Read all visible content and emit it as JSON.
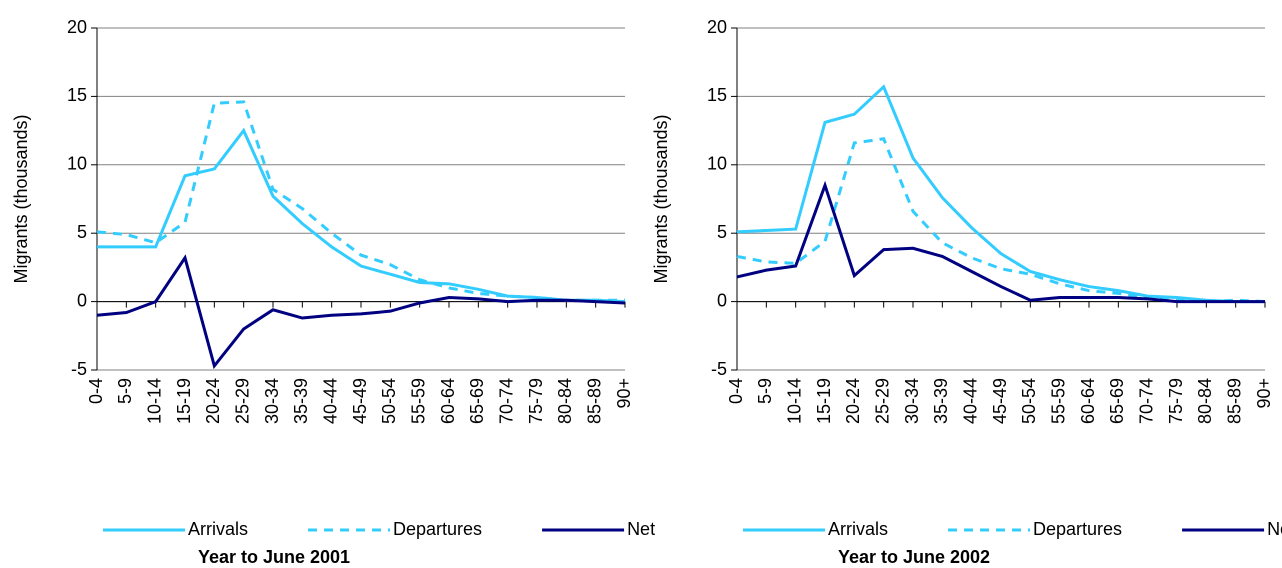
{
  "chart_data": [
    {
      "type": "line",
      "title": "Year to June 2001",
      "y_label": "Migrants (thousands)",
      "categories": [
        "0-4",
        "5-9",
        "10-14",
        "15-19",
        "20-24",
        "25-29",
        "30-34",
        "35-39",
        "40-44",
        "45-49",
        "50-54",
        "55-59",
        "60-64",
        "65-69",
        "70-74",
        "75-79",
        "80-84",
        "85-89",
        "90+"
      ],
      "series": [
        {
          "name": "Arrivals",
          "color": "#33ccff",
          "dashed": false,
          "values": [
            4.0,
            4.0,
            4.0,
            9.2,
            9.7,
            12.5,
            7.7,
            5.7,
            4.0,
            2.6,
            2.0,
            1.4,
            1.3,
            0.9,
            0.4,
            0.3,
            0.1,
            0.1,
            0.0
          ]
        },
        {
          "name": "Departures",
          "color": "#33ccff",
          "dashed": true,
          "values": [
            5.1,
            4.9,
            4.3,
            5.8,
            14.5,
            14.6,
            8.2,
            6.8,
            5.0,
            3.4,
            2.7,
            1.6,
            1.0,
            0.6,
            0.4,
            0.3,
            0.1,
            0.1,
            0.1
          ]
        },
        {
          "name": "Net",
          "color": "#000080",
          "dashed": false,
          "values": [
            -1.0,
            -0.8,
            0.0,
            3.2,
            -4.7,
            -2.0,
            -0.6,
            -1.2,
            -1.0,
            -0.9,
            -0.7,
            -0.1,
            0.3,
            0.2,
            0.0,
            0.1,
            0.1,
            0.0,
            -0.1
          ]
        }
      ],
      "ylim": [
        -5,
        20
      ],
      "yticks": [
        -5,
        0,
        5,
        10,
        15,
        20
      ],
      "grid": true,
      "legend": "bottom"
    },
    {
      "type": "line",
      "title": "Year to June 2002",
      "y_label": "Migrants (thousands)",
      "categories": [
        "0-4",
        "5-9",
        "10-14",
        "15-19",
        "20-24",
        "25-29",
        "30-34",
        "35-39",
        "40-44",
        "45-49",
        "50-54",
        "55-59",
        "60-64",
        "65-69",
        "70-74",
        "75-79",
        "80-84",
        "85-89",
        "90+"
      ],
      "series": [
        {
          "name": "Arrivals",
          "color": "#33ccff",
          "dashed": false,
          "values": [
            5.1,
            5.2,
            5.3,
            13.1,
            13.7,
            15.7,
            10.5,
            7.6,
            5.4,
            3.5,
            2.2,
            1.6,
            1.1,
            0.8,
            0.4,
            0.3,
            0.1,
            0.0,
            0.0
          ]
        },
        {
          "name": "Departures",
          "color": "#33ccff",
          "dashed": true,
          "values": [
            3.3,
            2.9,
            2.8,
            4.4,
            11.6,
            11.9,
            6.6,
            4.3,
            3.2,
            2.4,
            2.0,
            1.3,
            0.8,
            0.6,
            0.3,
            0.1,
            0.0,
            0.1,
            0.0
          ]
        },
        {
          "name": "Net",
          "color": "#000080",
          "dashed": false,
          "values": [
            1.8,
            2.3,
            2.6,
            8.5,
            1.9,
            3.8,
            3.9,
            3.3,
            2.2,
            1.1,
            0.1,
            0.3,
            0.3,
            0.3,
            0.2,
            0.0,
            0.0,
            0.0,
            0.0
          ]
        }
      ],
      "ylim": [
        -5,
        20
      ],
      "yticks": [
        -5,
        0,
        5,
        10,
        15,
        20
      ],
      "grid": true,
      "legend": "bottom"
    }
  ]
}
